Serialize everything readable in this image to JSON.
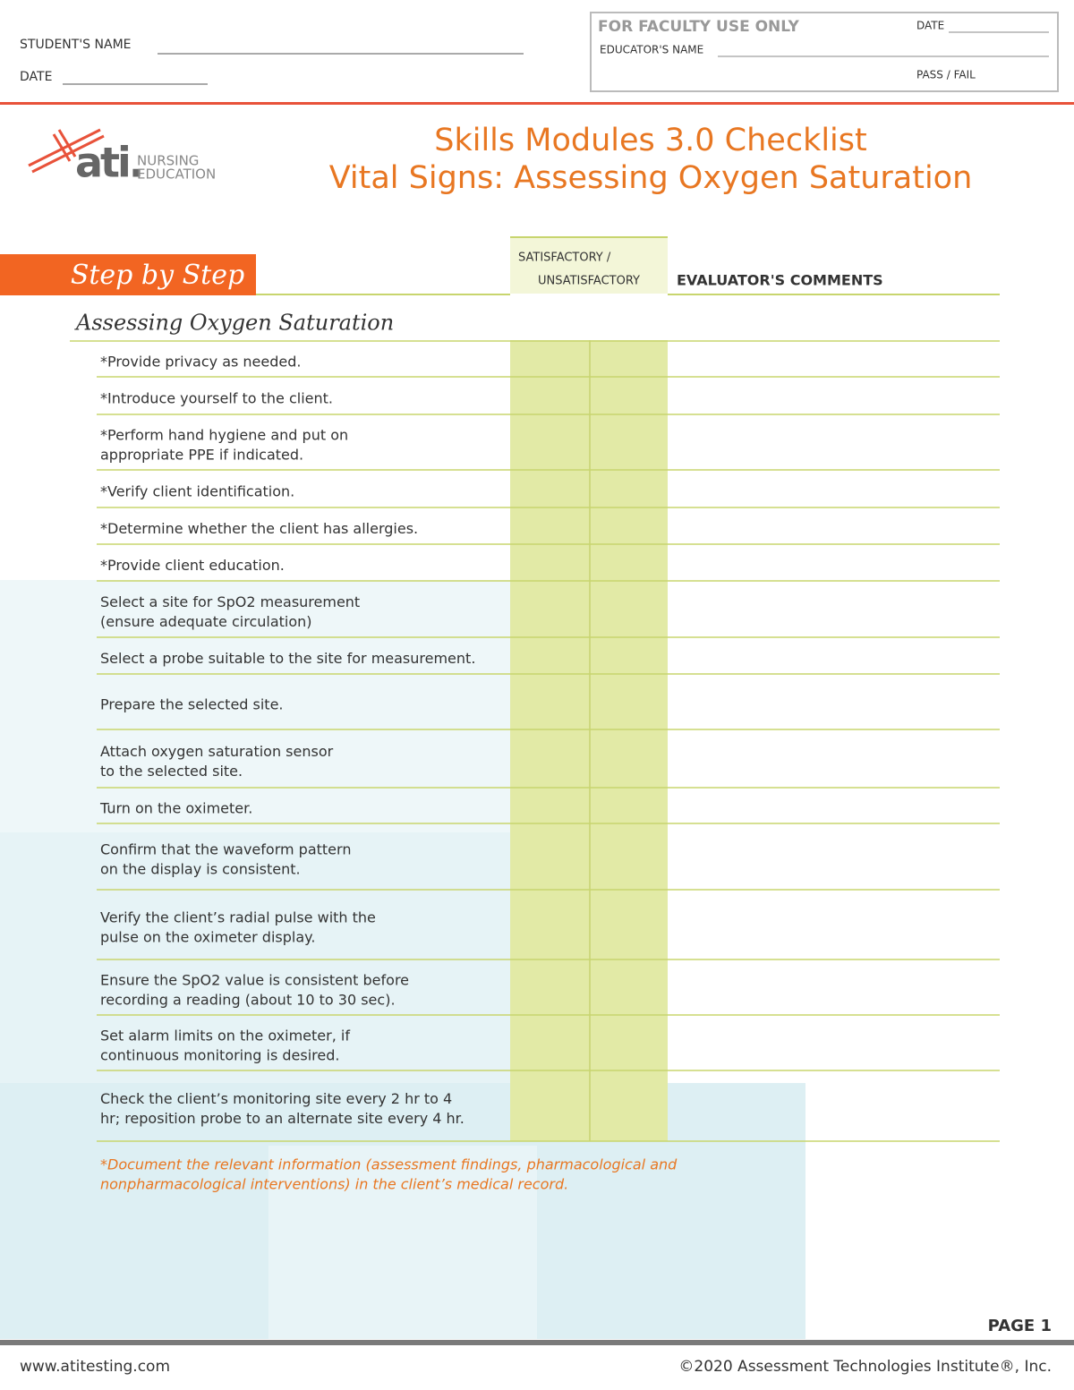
{
  "header": {
    "student_name_label": "STUDENT'S NAME",
    "date_label": "DATE",
    "faculty": {
      "title": "FOR FACULTY USE ONLY",
      "date_label": "DATE",
      "educator_label": "EDUCATOR'S NAME",
      "pass_fail_label": "PASS / FAIL"
    }
  },
  "logo": {
    "mark": "ati.",
    "line1": "NURSING",
    "line2": "EDUCATION"
  },
  "title": {
    "line1": "Skills Modules 3.0 Checklist",
    "line2": "Vital Signs: Assessing Oxygen Saturation"
  },
  "table": {
    "banner": "Step by Step",
    "col_status_1": "SATISFACTORY /",
    "col_status_2": "UNSATISFACTORY",
    "col_comments": "EVALUATOR'S COMMENTS",
    "section": "Assessing Oxygen Saturation",
    "steps": [
      [
        "*Provide privacy as needed."
      ],
      [
        "*Introduce yourself to the client."
      ],
      [
        "*Perform hand hygiene and put on",
        "appropriate PPE if indicated."
      ],
      [
        "*Verify client identification."
      ],
      [
        "*Determine whether the client has allergies."
      ],
      [
        "*Provide client education."
      ],
      [
        "Select a site for SpO2 measurement",
        "(ensure adequate circulation)"
      ],
      [
        "Select a probe suitable to the site for measurement."
      ],
      [
        "Prepare the selected site."
      ],
      [
        "Attach oxygen saturation sensor",
        "to the selected site."
      ],
      [
        "Turn on the oximeter."
      ],
      [
        "Confirm that the waveform pattern",
        "on the display is consistent."
      ],
      [
        "Verify the client’s radial pulse with the",
        "pulse on the oximeter display."
      ],
      [
        "Ensure the SpO2 value is consistent before",
        "recording a reading (about 10 to 30 sec)."
      ],
      [
        "Set alarm limits on the oximeter, if",
        "continuous monitoring is desired."
      ],
      [
        "Check the client’s monitoring site every 2 hr to 4",
        "hr; reposition probe to an alternate site every 4 hr."
      ]
    ],
    "footnote": [
      "*Document the relevant information (assessment findings, pharmacological and",
      "nonpharmacological interventions) in the client’s medical record."
    ]
  },
  "footer": {
    "page": "PAGE 1",
    "website": "www.atitesting.com",
    "copyright": "©2020 Assessment Technologies Institute®, Inc."
  }
}
